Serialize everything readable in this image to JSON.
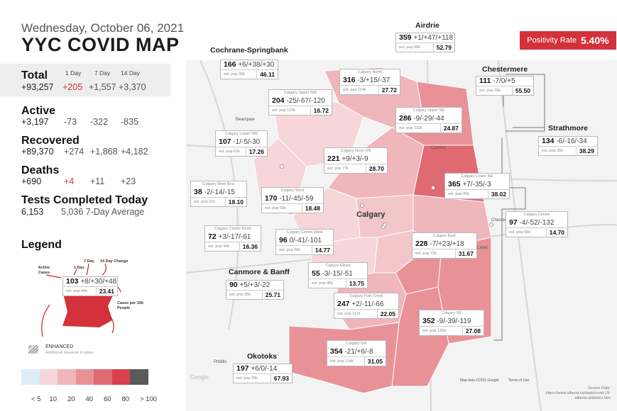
{
  "header": {
    "date": "Wednesday, October 06, 2021",
    "title": "YYC COVID MAP"
  },
  "stats_headers": {
    "d1": "1 Day",
    "d7": "7 Day",
    "d14": "14 Day"
  },
  "stats": {
    "total": {
      "label": "Total",
      "value": "+93,257",
      "d1": "+205",
      "d7": "+1,557",
      "d14": "+3,370"
    },
    "active": {
      "label": "Active",
      "value": "+3,197",
      "d1": "-73",
      "d7": "-322",
      "d14": "-835"
    },
    "recovered": {
      "label": "Recovered",
      "value": "+89,370",
      "d1": "+274",
      "d7": "+1,868",
      "d14": "+4,182"
    },
    "deaths": {
      "label": "Deaths",
      "value": "+690",
      "d1": "+4",
      "d7": "+11",
      "d14": "+23"
    },
    "tests": {
      "label": "Tests Completed Today",
      "value": "6,153",
      "avg": "5,036 7-Day Average"
    }
  },
  "legend": {
    "title": "Legend",
    "active_cases": "Active Cases",
    "one_day": "1 Day",
    "seven_day": "7 Day",
    "fourteen_day": "14 Day Change",
    "cases_per": "Cases per 10k People",
    "sample": {
      "active": "103",
      "changes": "+8/+30/+48",
      "pop": "est. pop 44k",
      "rate": "23.41"
    },
    "enhanced": "ENHANCED",
    "enhanced_sub": "Additional measure in place",
    "scale_labels": [
      "< 5",
      "10",
      "20",
      "40",
      "60",
      "80",
      "> 100"
    ],
    "scale_colors": [
      "#ddeef7",
      "#f6d6d8",
      "#efb6bb",
      "#e89298",
      "#e06a72",
      "#d8414c",
      "#5a5a5a"
    ]
  },
  "positivity": {
    "label": "Positivity Rate",
    "value": "5.40%"
  },
  "map": {
    "city_label": "Calgary",
    "attribution": "Map data ©2021 Google",
    "terms": "Terms of Use",
    "source": "Source Data: https://www.alberta.ca/stats/covid-19-alberta-statistics.htm",
    "places": [
      "Bearspaw",
      "Cornish",
      "Chestermere",
      "Lanet",
      "Priddis",
      "Google"
    ],
    "regions": [
      {
        "id": "airdrie",
        "title": "Airdrie",
        "sub": "",
        "active": "359",
        "changes": "+1/+47/+118",
        "pop": "est. pop 68k",
        "rate": "52.79"
      },
      {
        "id": "cochrane",
        "title": "Cochrane-Springbank",
        "sub": "",
        "active": "166",
        "changes": "+6/+38/+30",
        "pop": "est. pop 36k",
        "rate": "46.11"
      },
      {
        "id": "north",
        "title": "",
        "sub": "Calgary North",
        "active": "316",
        "changes": "-3/+15/-37",
        "pop": "est. pop 114k",
        "rate": "27.72"
      },
      {
        "id": "uppernw",
        "title": "",
        "sub": "Calgary Upper NW",
        "active": "204",
        "changes": "-25/-67/-120",
        "pop": "est. pop 122k",
        "rate": "16.72"
      },
      {
        "id": "chestermere",
        "title": "Chestermere",
        "sub": "",
        "active": "111",
        "changes": "-7/0/+5",
        "pop": "est. pop 20k",
        "rate": "55.50"
      },
      {
        "id": "upperne",
        "title": "",
        "sub": "Calgary Upper NE",
        "active": "286",
        "changes": "-9/-29/-44",
        "pop": "est. pop 115k",
        "rate": "24.87"
      },
      {
        "id": "lowernw",
        "title": "",
        "sub": "Calgary Lower NW",
        "active": "107",
        "changes": "-1/-5/-30",
        "pop": "est. pop 62k",
        "rate": "17.26"
      },
      {
        "id": "strathmore",
        "title": "Strathmore",
        "sub": "",
        "active": "134",
        "changes": "-6/-16/-34",
        "pop": "est. pop 35k",
        "rate": "38.29"
      },
      {
        "id": "nosehill",
        "title": "",
        "sub": "Calgary Nose Hill",
        "active": "221",
        "changes": "+9/+3/-9",
        "pop": "est. pop 77k",
        "rate": "28.70"
      },
      {
        "id": "westbow",
        "title": "",
        "sub": "Calgary West Bow",
        "active": "38",
        "changes": "-2/-14/-15",
        "pop": "est. pop 21k",
        "rate": "18.10"
      },
      {
        "id": "west",
        "title": "",
        "sub": "Calgary West",
        "active": "170",
        "changes": "-11/-45/-59",
        "pop": "est. pop 92k",
        "rate": "18.48"
      },
      {
        "id": "lowerne",
        "title": "",
        "sub": "Calgary Lower NE",
        "active": "365",
        "changes": "+7/-35/-3",
        "pop": "est. pop 96k",
        "rate": "38.02"
      },
      {
        "id": "centre",
        "title": "",
        "sub": "Calgary Centre",
        "active": "97",
        "changes": "-4/-52/-132",
        "pop": "est. pop 66k",
        "rate": "14.70"
      },
      {
        "id": "centrenorth",
        "title": "",
        "sub": "Calgary Centre North",
        "active": "72",
        "changes": "+3/-17/-61",
        "pop": "est. pop 44k",
        "rate": "16.36"
      },
      {
        "id": "centrewest",
        "title": "",
        "sub": "Calgary Centre West",
        "active": "96",
        "changes": "0/-41/-101",
        "pop": "est. pop 65k",
        "rate": "14.77"
      },
      {
        "id": "east",
        "title": "",
        "sub": "Calgary East",
        "active": "228",
        "changes": "-7/+23/+18",
        "pop": "est. pop 72k",
        "rate": "31.67"
      },
      {
        "id": "elbow",
        "title": "",
        "sub": "Calgary Elbow",
        "active": "55",
        "changes": "-3/-15/-51",
        "pop": "est. pop 40k",
        "rate": "13.75"
      },
      {
        "id": "canmore",
        "title": "Canmore & Banff",
        "sub": "",
        "active": "90",
        "changes": "+5/+3/-22",
        "pop": "est. pop 35k",
        "rate": "25.71"
      },
      {
        "id": "fishcreek",
        "title": "",
        "sub": "Calgary Fish Creek",
        "active": "247",
        "changes": "+2/-11/-66",
        "pop": "est. pop 112k",
        "rate": "22.05"
      },
      {
        "id": "se",
        "title": "",
        "sub": "Calgary SE",
        "active": "352",
        "changes": "-9/-39/-119",
        "pop": "est. pop 130k",
        "rate": "27.08"
      },
      {
        "id": "sw",
        "title": "",
        "sub": "Calgary SW",
        "active": "354",
        "changes": "-21/+6/-8",
        "pop": "est. pop 114k",
        "rate": "31.05"
      },
      {
        "id": "okotoks",
        "title": "Okotoks",
        "sub": "",
        "active": "197",
        "changes": "+6/0/-14",
        "pop": "est. pop 29k",
        "rate": "67.93"
      }
    ]
  }
}
